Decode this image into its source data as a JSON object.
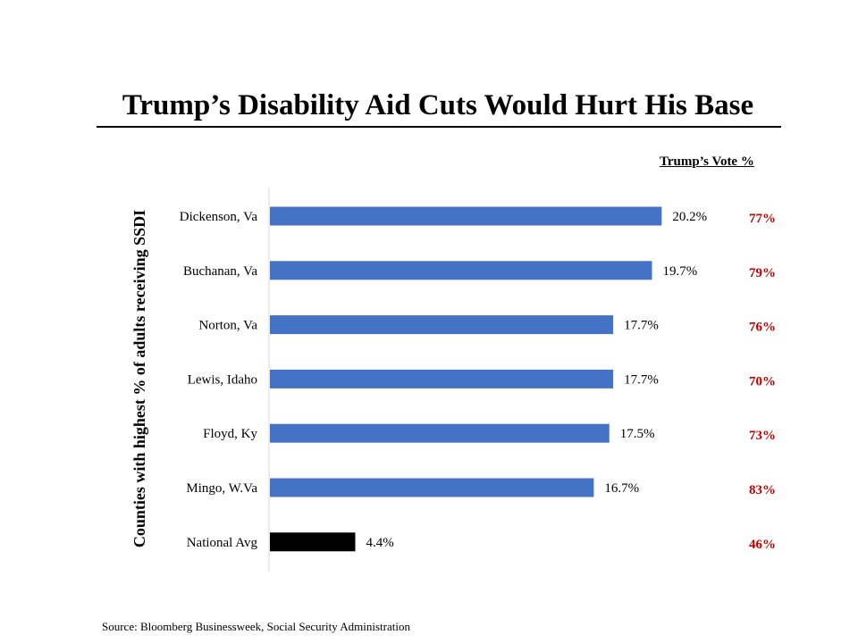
{
  "title": "Trump’s Disability Aid Cuts Would Hurt His Base",
  "vote_header": "Trump’s Vote %",
  "source": "Source: Bloomberg Businessweek, Social Security Administration",
  "colors": {
    "bar": "#4472C4",
    "national_bar": "#000000",
    "vote_text": "#C00000",
    "axis": "#D9D9D9"
  },
  "chart_data": {
    "type": "bar",
    "orientation": "horizontal",
    "title": "Trump’s Disability Aid Cuts Would Hurt His Base",
    "ylabel": "Counties with highest % of adults receiving SSDI",
    "xlabel": "",
    "xlim": [
      0,
      21
    ],
    "grid": false,
    "categories": [
      "Dickenson, Va",
      "Buchanan, Va",
      "Norton, Va",
      "Lewis, Idaho",
      "Floyd, Ky",
      "Mingo, W.Va",
      "National Avg"
    ],
    "values": [
      20.2,
      19.7,
      17.7,
      17.7,
      17.5,
      16.7,
      4.4
    ],
    "value_labels": [
      "20.2%",
      "19.7%",
      "17.7%",
      "17.7%",
      "17.5%",
      "16.7%",
      "4.4%"
    ],
    "vote_labels": [
      "77%",
      "79%",
      "76%",
      "70%",
      "73%",
      "83%",
      "46%"
    ]
  }
}
